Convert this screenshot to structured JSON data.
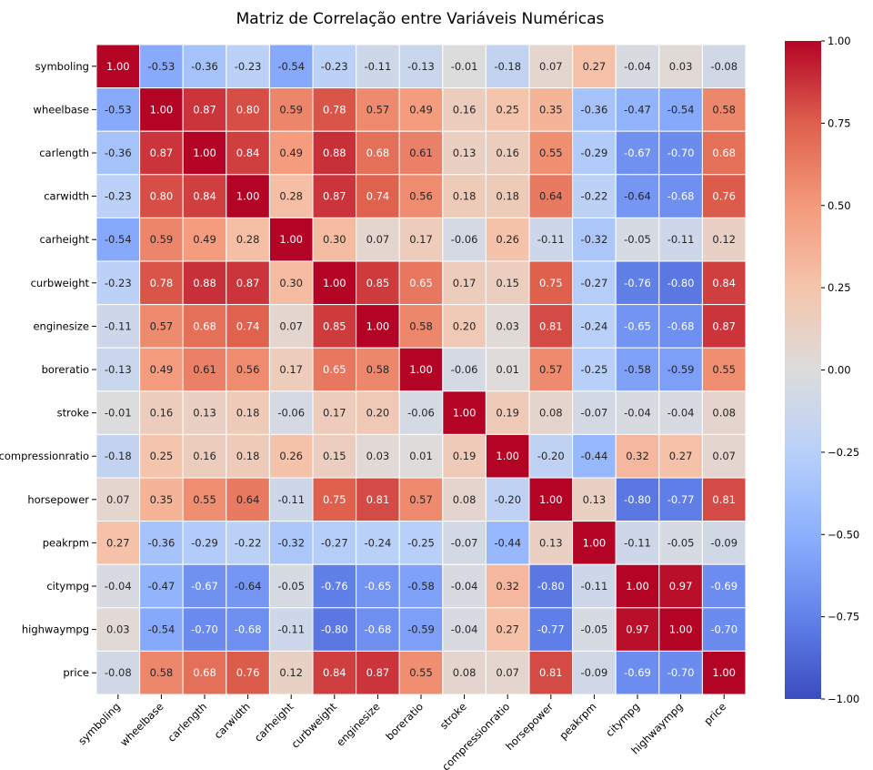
{
  "chart_data": {
    "type": "heatmap",
    "title": "Matriz de Correlação entre Variáveis Numéricas",
    "xlabel": "",
    "ylabel": "",
    "labels": [
      "symboling",
      "wheelbase",
      "carlength",
      "carwidth",
      "carheight",
      "curbweight",
      "enginesize",
      "boreratio",
      "stroke",
      "compressionratio",
      "horsepower",
      "peakrpm",
      "citympg",
      "highwaympg",
      "price"
    ],
    "matrix": [
      [
        1.0,
        -0.53,
        -0.36,
        -0.23,
        -0.54,
        -0.23,
        -0.11,
        -0.13,
        -0.01,
        -0.18,
        0.07,
        0.27,
        -0.04,
        0.03,
        -0.08
      ],
      [
        -0.53,
        1.0,
        0.87,
        0.8,
        0.59,
        0.78,
        0.57,
        0.49,
        0.16,
        0.25,
        0.35,
        -0.36,
        -0.47,
        -0.54,
        0.58
      ],
      [
        -0.36,
        0.87,
        1.0,
        0.84,
        0.49,
        0.88,
        0.68,
        0.61,
        0.13,
        0.16,
        0.55,
        -0.29,
        -0.67,
        -0.7,
        0.68
      ],
      [
        -0.23,
        0.8,
        0.84,
        1.0,
        0.28,
        0.87,
        0.74,
        0.56,
        0.18,
        0.18,
        0.64,
        -0.22,
        -0.64,
        -0.68,
        0.76
      ],
      [
        -0.54,
        0.59,
        0.49,
        0.28,
        1.0,
        0.3,
        0.07,
        0.17,
        -0.06,
        0.26,
        -0.11,
        -0.32,
        -0.05,
        -0.11,
        0.12
      ],
      [
        -0.23,
        0.78,
        0.88,
        0.87,
        0.3,
        1.0,
        0.85,
        0.65,
        0.17,
        0.15,
        0.75,
        -0.27,
        -0.76,
        -0.8,
        0.84
      ],
      [
        -0.11,
        0.57,
        0.68,
        0.74,
        0.07,
        0.85,
        1.0,
        0.58,
        0.2,
        0.03,
        0.81,
        -0.24,
        -0.65,
        -0.68,
        0.87
      ],
      [
        -0.13,
        0.49,
        0.61,
        0.56,
        0.17,
        0.65,
        0.58,
        1.0,
        -0.06,
        0.01,
        0.57,
        -0.25,
        -0.58,
        -0.59,
        0.55
      ],
      [
        -0.01,
        0.16,
        0.13,
        0.18,
        -0.06,
        0.17,
        0.2,
        -0.06,
        1.0,
        0.19,
        0.08,
        -0.07,
        -0.04,
        -0.04,
        0.08
      ],
      [
        -0.18,
        0.25,
        0.16,
        0.18,
        0.26,
        0.15,
        0.03,
        0.01,
        0.19,
        1.0,
        -0.2,
        -0.44,
        0.32,
        0.27,
        0.07
      ],
      [
        0.07,
        0.35,
        0.55,
        0.64,
        -0.11,
        0.75,
        0.81,
        0.57,
        0.08,
        -0.2,
        1.0,
        0.13,
        -0.8,
        -0.77,
        0.81
      ],
      [
        0.27,
        -0.36,
        -0.29,
        -0.22,
        -0.32,
        -0.27,
        -0.24,
        -0.25,
        -0.07,
        -0.44,
        0.13,
        1.0,
        -0.11,
        -0.05,
        -0.09
      ],
      [
        -0.04,
        -0.47,
        -0.67,
        -0.64,
        -0.05,
        -0.76,
        -0.65,
        -0.58,
        -0.04,
        0.32,
        -0.8,
        -0.11,
        1.0,
        0.97,
        -0.69
      ],
      [
        0.03,
        -0.54,
        -0.7,
        -0.68,
        -0.11,
        -0.8,
        -0.68,
        -0.59,
        -0.04,
        0.27,
        -0.77,
        -0.05,
        0.97,
        1.0,
        -0.7
      ],
      [
        -0.08,
        0.58,
        0.68,
        0.76,
        0.12,
        0.84,
        0.87,
        0.55,
        0.08,
        0.07,
        0.81,
        -0.09,
        -0.69,
        -0.7,
        1.0
      ]
    ],
    "colormap": "coolwarm",
    "vmin": -1.0,
    "vmax": 1.0,
    "annotation_format": "0.00",
    "colorbar_ticks": [
      "1.00",
      "0.75",
      "0.50",
      "0.25",
      "0.00",
      "−0.25",
      "−0.50",
      "−0.75",
      "−1.00"
    ],
    "grid": false,
    "legend": "colorbar-right"
  }
}
